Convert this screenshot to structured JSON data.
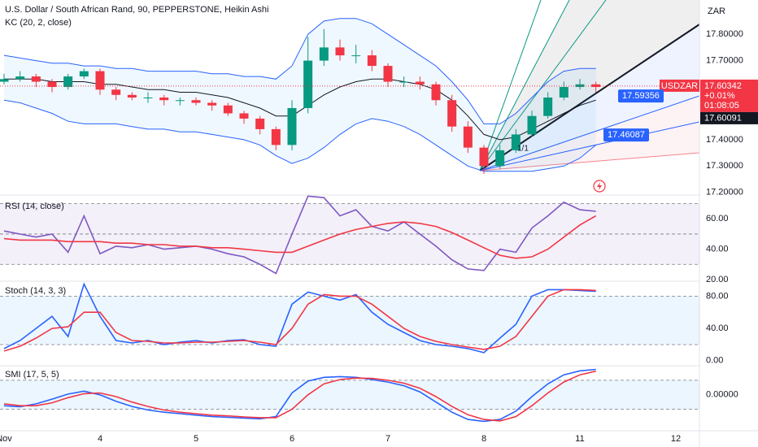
{
  "chart_data": [
    {
      "type": "candlestick",
      "title": "U.S. Dollar / South African Rand, 90, PEPPERSTONE, Heikin Ashi",
      "indicator": "KC (20, 2, close)",
      "y_axis_label": "ZAR",
      "categories": [
        "Nov",
        null,
        null,
        null,
        null,
        null,
        "4",
        null,
        null,
        null,
        null,
        null,
        "5",
        null,
        null,
        null,
        null,
        null,
        "6",
        null,
        null,
        null,
        null,
        null,
        "7",
        null,
        null,
        null,
        null,
        null,
        "8",
        null,
        null,
        null,
        null,
        null,
        "11",
        null,
        null,
        null,
        null,
        null,
        "12"
      ],
      "open": [
        17.62,
        17.63,
        17.64,
        17.62,
        17.6,
        17.64,
        17.66,
        17.59,
        17.57,
        17.56,
        17.56,
        17.55,
        17.55,
        17.54,
        17.53,
        17.5,
        17.48,
        17.44,
        17.38,
        17.52,
        17.7,
        17.75,
        17.72,
        17.72,
        17.68,
        17.62,
        17.62,
        17.61,
        17.55,
        17.45,
        17.37,
        17.3,
        17.36,
        17.42,
        17.49,
        17.56,
        17.6,
        17.61,
        null,
        null,
        null,
        null,
        null
      ],
      "high": [
        17.65,
        17.66,
        17.65,
        17.63,
        17.65,
        17.67,
        17.67,
        17.6,
        17.58,
        17.58,
        17.57,
        17.56,
        17.56,
        17.55,
        17.54,
        17.51,
        17.49,
        17.45,
        17.55,
        17.79,
        17.82,
        17.78,
        17.76,
        17.74,
        17.69,
        17.64,
        17.64,
        17.62,
        17.57,
        17.47,
        17.38,
        17.38,
        17.44,
        17.51,
        17.58,
        17.62,
        17.63,
        17.62,
        null,
        null,
        null,
        null,
        null
      ],
      "low": [
        17.61,
        17.62,
        17.6,
        17.58,
        17.59,
        17.63,
        17.57,
        17.55,
        17.55,
        17.54,
        17.53,
        17.53,
        17.53,
        17.51,
        17.49,
        17.46,
        17.42,
        17.36,
        17.36,
        17.5,
        17.68,
        17.7,
        17.69,
        17.66,
        17.6,
        17.6,
        17.59,
        17.53,
        17.43,
        17.35,
        17.27,
        17.29,
        17.35,
        17.41,
        17.48,
        17.55,
        17.59,
        17.58,
        null,
        null,
        null,
        null,
        null
      ],
      "close": [
        17.63,
        17.64,
        17.62,
        17.6,
        17.64,
        17.66,
        17.59,
        17.57,
        17.56,
        17.56,
        17.55,
        17.55,
        17.54,
        17.53,
        17.5,
        17.48,
        17.44,
        17.38,
        17.52,
        17.7,
        17.75,
        17.72,
        17.72,
        17.68,
        17.62,
        17.62,
        17.61,
        17.55,
        17.45,
        17.37,
        17.3,
        17.36,
        17.42,
        17.49,
        17.56,
        17.6,
        17.61,
        17.6,
        null,
        null,
        null,
        null,
        null
      ],
      "up_color": "#089981",
      "down_color": "#f23645",
      "keltner": {
        "color": "#2962ff",
        "basis_color": "#131722",
        "upper": [
          17.72,
          17.71,
          17.7,
          17.69,
          17.69,
          17.68,
          17.68,
          17.67,
          17.67,
          17.66,
          17.66,
          17.66,
          17.66,
          17.65,
          17.65,
          17.64,
          17.64,
          17.63,
          17.68,
          17.8,
          17.85,
          17.86,
          17.86,
          17.84,
          17.8,
          17.76,
          17.72,
          17.68,
          17.62,
          17.55,
          17.46,
          17.46,
          17.5,
          17.56,
          17.62,
          17.66,
          17.67,
          17.67,
          null,
          null,
          null,
          null,
          null
        ],
        "basis": [
          17.63,
          17.63,
          17.63,
          17.62,
          17.62,
          17.62,
          17.61,
          17.61,
          17.6,
          17.59,
          17.59,
          17.58,
          17.58,
          17.57,
          17.56,
          17.54,
          17.52,
          17.49,
          17.49,
          17.53,
          17.57,
          17.6,
          17.62,
          17.63,
          17.63,
          17.62,
          17.61,
          17.59,
          17.55,
          17.49,
          17.42,
          17.4,
          17.41,
          17.44,
          17.47,
          17.5,
          17.53,
          17.55,
          null,
          null,
          null,
          null,
          null
        ],
        "lower": [
          17.55,
          17.54,
          17.52,
          17.5,
          17.47,
          17.46,
          17.46,
          17.46,
          17.45,
          17.44,
          17.44,
          17.43,
          17.43,
          17.42,
          17.41,
          17.4,
          17.38,
          17.34,
          17.31,
          17.33,
          17.37,
          17.42,
          17.46,
          17.48,
          17.47,
          17.45,
          17.42,
          17.38,
          17.34,
          17.3,
          17.28,
          17.28,
          17.28,
          17.28,
          17.29,
          17.3,
          17.33,
          17.38,
          null,
          null,
          null,
          null,
          null
        ]
      },
      "ylim": [
        17.19,
        17.93
      ],
      "yticks": [
        {
          "value": 17.2,
          "label": "17.20000"
        },
        {
          "value": 17.3,
          "label": "17.30000"
        },
        {
          "value": 17.4,
          "label": "17.40000"
        },
        {
          "value": 17.7,
          "label": "17.70000"
        },
        {
          "value": 17.8,
          "label": "17.80000"
        }
      ],
      "symbol": "USDZAR",
      "last_price": 17.60342,
      "change": {
        "value": 0.01,
        "label": "+0.01%"
      },
      "countdown": "01:08:05",
      "price_line": 17.60091,
      "drawing_labels": [
        17.59356,
        17.46087
      ],
      "fan_label": "1/1"
    },
    {
      "type": "line",
      "title": "RSI (14, close)",
      "series": [
        {
          "color": "#7e57c2",
          "values": [
            52,
            50,
            48,
            50,
            38,
            62,
            37,
            42,
            41,
            43,
            40,
            41,
            42,
            40,
            37,
            35,
            30,
            24,
            50,
            75,
            74,
            62,
            66,
            55,
            52,
            58,
            50,
            42,
            33,
            27,
            26,
            40,
            38,
            54,
            62,
            71,
            66,
            65
          ]
        },
        {
          "color": "#f23645",
          "values": [
            47,
            46,
            46,
            46,
            45,
            45,
            45,
            44,
            44,
            43,
            43,
            42,
            42,
            41,
            41,
            40,
            39,
            38,
            38,
            42,
            46,
            50,
            53,
            55,
            57,
            58,
            57,
            55,
            51,
            46,
            41,
            36,
            34,
            35,
            40,
            48,
            56,
            62
          ]
        }
      ],
      "ylim": [
        18.9,
        75.7
      ],
      "yticks": [
        {
          "value": 20,
          "label": "20.00"
        },
        {
          "value": 40,
          "label": "40.00"
        },
        {
          "value": 60,
          "label": "60.00"
        }
      ],
      "hlines": [
        70,
        50,
        30
      ],
      "band_color": "rgba(126,87,194,0.09)"
    },
    {
      "type": "line",
      "title": "Stoch (14, 3, 3)",
      "series": [
        {
          "color": "#2962ff",
          "values": [
            15,
            25,
            40,
            55,
            30,
            95,
            55,
            25,
            22,
            25,
            20,
            23,
            25,
            22,
            25,
            26,
            20,
            18,
            70,
            85,
            80,
            75,
            82,
            60,
            45,
            35,
            25,
            20,
            18,
            15,
            10,
            28,
            45,
            80,
            88,
            88,
            87,
            86
          ]
        },
        {
          "color": "#f23645",
          "values": [
            12,
            18,
            28,
            40,
            42,
            60,
            60,
            35,
            25,
            24,
            22,
            22,
            23,
            23,
            24,
            25,
            23,
            20,
            40,
            70,
            82,
            80,
            80,
            70,
            55,
            40,
            30,
            24,
            20,
            17,
            14,
            18,
            30,
            55,
            80,
            88,
            88,
            87
          ]
        }
      ],
      "ylim": [
        -6.2,
        98.5
      ],
      "yticks": [
        {
          "value": 0,
          "label": "0.00"
        },
        {
          "value": 40,
          "label": "40.00"
        },
        {
          "value": 80,
          "label": "80.00"
        }
      ],
      "hlines": [
        80,
        20
      ],
      "band_color": "rgba(33,150,243,0.09)"
    },
    {
      "type": "line",
      "title": "SMI (17, 5, 5)",
      "series": [
        {
          "color": "#2962ff",
          "values": [
            -30,
            -33,
            -25,
            -12,
            2,
            10,
            0,
            -18,
            -32,
            -42,
            -48,
            -52,
            -56,
            -60,
            -62,
            -64,
            -66,
            -60,
            5,
            38,
            48,
            50,
            48,
            42,
            35,
            25,
            8,
            -20,
            -48,
            -68,
            -73,
            -68,
            -45,
            -5,
            30,
            55,
            66,
            70
          ]
        },
        {
          "color": "#f23645",
          "values": [
            -25,
            -30,
            -30,
            -22,
            -8,
            3,
            5,
            -5,
            -20,
            -32,
            -42,
            -48,
            -52,
            -56,
            -58,
            -61,
            -63,
            -63,
            -40,
            0,
            30,
            42,
            46,
            45,
            40,
            32,
            18,
            -5,
            -32,
            -55,
            -68,
            -72,
            -60,
            -30,
            5,
            35,
            55,
            65
          ]
        }
      ],
      "ylim": [
        -99,
        80
      ],
      "yticks": [
        {
          "value": 0,
          "label": "0.00000"
        }
      ],
      "hlines": [
        40,
        -40
      ],
      "band_color": "rgba(33,150,243,0.09)"
    }
  ]
}
